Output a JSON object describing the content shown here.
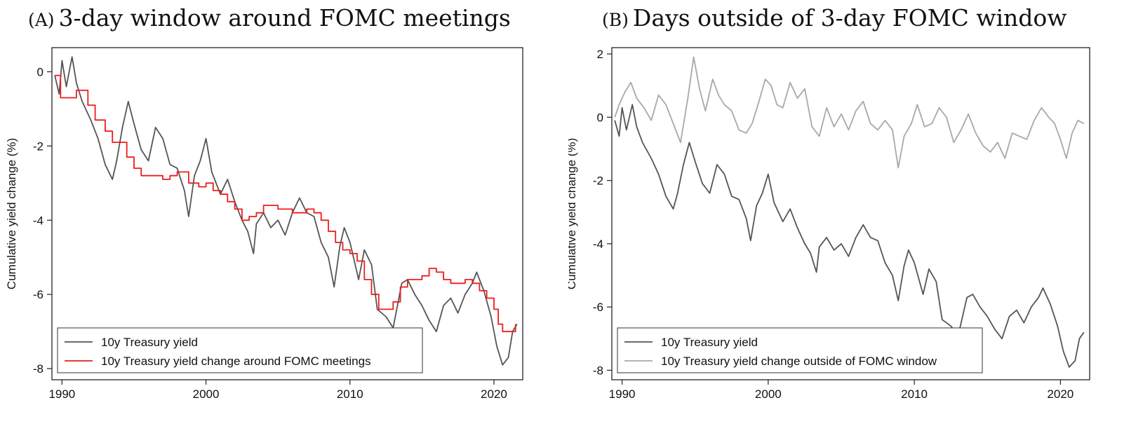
{
  "panels": {
    "a": {
      "tag": "(A)",
      "title": "3-day window around FOMC meetings"
    },
    "b": {
      "tag": "(B)",
      "title": "Days outside of 3-day FOMC window"
    }
  },
  "colors": {
    "yield": "#555555",
    "fomc": "#ee1c1c",
    "outside": "#a8a8a8"
  },
  "chart_data": [
    {
      "type": "line",
      "panel": "A",
      "title": "3-day window around FOMC meetings",
      "xlabel": "",
      "ylabel": "Cumulative yield change (%)",
      "xlim": [
        1989.3,
        2022.0
      ],
      "ylim": [
        -8.3,
        0.65
      ],
      "xticks": [
        1990,
        2000,
        2010,
        2020
      ],
      "yticks": [
        0,
        -2,
        -4,
        -6,
        -8
      ],
      "grid": false,
      "legend_position": "bottom-left",
      "series": [
        {
          "name": "10y Treasury yield",
          "color": "#555555",
          "x": [
            1989.5,
            1989.8,
            1990.0,
            1990.3,
            1990.7,
            1991.0,
            1991.4,
            1992.0,
            1992.5,
            1993.0,
            1993.5,
            1993.8,
            1994.2,
            1994.6,
            1995.0,
            1995.5,
            1996.0,
            1996.5,
            1997.0,
            1997.5,
            1998.0,
            1998.5,
            1998.8,
            1999.2,
            1999.6,
            2000.0,
            2000.4,
            2001.0,
            2001.5,
            2002.0,
            2002.5,
            2002.9,
            2003.3,
            2003.5,
            2004.0,
            2004.5,
            2005.0,
            2005.5,
            2006.0,
            2006.5,
            2007.0,
            2007.5,
            2008.0,
            2008.5,
            2008.9,
            2009.3,
            2009.6,
            2010.0,
            2010.6,
            2011.0,
            2011.5,
            2011.9,
            2012.5,
            2013.0,
            2013.6,
            2014.0,
            2014.5,
            2015.0,
            2015.5,
            2016.0,
            2016.5,
            2017.0,
            2017.5,
            2018.0,
            2018.5,
            2018.8,
            2019.3,
            2019.8,
            2020.2,
            2020.6,
            2021.0,
            2021.3,
            2021.6
          ],
          "y": [
            -0.1,
            -0.6,
            0.3,
            -0.4,
            0.4,
            -0.3,
            -0.8,
            -1.3,
            -1.8,
            -2.5,
            -2.9,
            -2.4,
            -1.5,
            -0.8,
            -1.4,
            -2.1,
            -2.4,
            -1.5,
            -1.8,
            -2.5,
            -2.6,
            -3.2,
            -3.9,
            -2.8,
            -2.4,
            -1.8,
            -2.7,
            -3.3,
            -2.9,
            -3.5,
            -4.0,
            -4.3,
            -4.9,
            -4.1,
            -3.8,
            -4.2,
            -4.0,
            -4.4,
            -3.8,
            -3.4,
            -3.8,
            -3.9,
            -4.6,
            -5.0,
            -5.8,
            -4.7,
            -4.2,
            -4.6,
            -5.6,
            -4.8,
            -5.2,
            -6.4,
            -6.6,
            -6.9,
            -5.7,
            -5.6,
            -6.0,
            -6.3,
            -6.7,
            -7.0,
            -6.3,
            -6.1,
            -6.5,
            -6.0,
            -5.7,
            -5.4,
            -5.9,
            -6.6,
            -7.4,
            -7.9,
            -7.7,
            -7.0,
            -6.8
          ]
        },
        {
          "name": "10y Treasury yield change around FOMC meetings",
          "color": "#ee1c1c",
          "step": true,
          "x": [
            1989.5,
            1989.9,
            1990.5,
            1991.0,
            1991.8,
            1992.3,
            1993.0,
            1993.5,
            1994.0,
            1994.5,
            1995.0,
            1995.5,
            1996.0,
            1997.0,
            1997.5,
            1998.0,
            1998.8,
            1999.5,
            2000.0,
            2000.5,
            2001.0,
            2001.5,
            2002.0,
            2002.5,
            2003.0,
            2003.5,
            2004.0,
            2005.0,
            2006.0,
            2007.0,
            2007.5,
            2008.0,
            2008.5,
            2009.0,
            2009.5,
            2010.0,
            2010.5,
            2011.0,
            2011.5,
            2012.0,
            2012.5,
            2013.0,
            2013.5,
            2014.0,
            2015.0,
            2015.5,
            2016.0,
            2016.5,
            2017.0,
            2018.0,
            2018.5,
            2019.0,
            2019.5,
            2020.0,
            2020.3,
            2020.6,
            2021.0,
            2021.5
          ],
          "y": [
            -0.1,
            -0.7,
            -0.7,
            -0.5,
            -0.9,
            -1.3,
            -1.6,
            -1.9,
            -1.9,
            -2.3,
            -2.6,
            -2.8,
            -2.8,
            -2.9,
            -2.8,
            -2.7,
            -3.0,
            -3.1,
            -3.0,
            -3.2,
            -3.3,
            -3.5,
            -3.7,
            -4.0,
            -3.9,
            -3.8,
            -3.6,
            -3.7,
            -3.8,
            -3.7,
            -3.8,
            -4.0,
            -4.3,
            -4.6,
            -4.8,
            -4.9,
            -5.1,
            -5.6,
            -6.0,
            -6.4,
            -6.4,
            -6.2,
            -5.8,
            -5.6,
            -5.5,
            -5.3,
            -5.4,
            -5.6,
            -5.7,
            -5.6,
            -5.7,
            -5.9,
            -6.1,
            -6.4,
            -6.8,
            -7.0,
            -7.0,
            -6.8
          ]
        }
      ]
    },
    {
      "type": "line",
      "panel": "B",
      "title": "Days outside of 3-day FOMC window",
      "xlabel": "",
      "ylabel": "Cumulative yield change (%)",
      "xlim": [
        1989.3,
        2022.0
      ],
      "ylim": [
        -8.3,
        2.2
      ],
      "xticks": [
        1990,
        2000,
        2010,
        2020
      ],
      "yticks": [
        2,
        0,
        -2,
        -4,
        -6,
        -8
      ],
      "grid": false,
      "legend_position": "bottom-left",
      "series": [
        {
          "name": "10y Treasury yield",
          "color": "#555555",
          "x": [
            1989.5,
            1989.8,
            1990.0,
            1990.3,
            1990.7,
            1991.0,
            1991.4,
            1992.0,
            1992.5,
            1993.0,
            1993.5,
            1993.8,
            1994.2,
            1994.6,
            1995.0,
            1995.5,
            1996.0,
            1996.5,
            1997.0,
            1997.5,
            1998.0,
            1998.5,
            1998.8,
            1999.2,
            1999.6,
            2000.0,
            2000.4,
            2001.0,
            2001.5,
            2002.0,
            2002.5,
            2002.9,
            2003.3,
            2003.5,
            2004.0,
            2004.5,
            2005.0,
            2005.5,
            2006.0,
            2006.5,
            2007.0,
            2007.5,
            2008.0,
            2008.5,
            2008.9,
            2009.3,
            2009.6,
            2010.0,
            2010.6,
            2011.0,
            2011.5,
            2011.9,
            2012.5,
            2013.0,
            2013.6,
            2014.0,
            2014.5,
            2015.0,
            2015.5,
            2016.0,
            2016.5,
            2017.0,
            2017.5,
            2018.0,
            2018.5,
            2018.8,
            2019.3,
            2019.8,
            2020.2,
            2020.6,
            2021.0,
            2021.3,
            2021.6
          ],
          "y": [
            -0.1,
            -0.6,
            0.3,
            -0.4,
            0.4,
            -0.3,
            -0.8,
            -1.3,
            -1.8,
            -2.5,
            -2.9,
            -2.4,
            -1.5,
            -0.8,
            -1.4,
            -2.1,
            -2.4,
            -1.5,
            -1.8,
            -2.5,
            -2.6,
            -3.2,
            -3.9,
            -2.8,
            -2.4,
            -1.8,
            -2.7,
            -3.3,
            -2.9,
            -3.5,
            -4.0,
            -4.3,
            -4.9,
            -4.1,
            -3.8,
            -4.2,
            -4.0,
            -4.4,
            -3.8,
            -3.4,
            -3.8,
            -3.9,
            -4.6,
            -5.0,
            -5.8,
            -4.7,
            -4.2,
            -4.6,
            -5.6,
            -4.8,
            -5.2,
            -6.4,
            -6.6,
            -6.9,
            -5.7,
            -5.6,
            -6.0,
            -6.3,
            -6.7,
            -7.0,
            -6.3,
            -6.1,
            -6.5,
            -6.0,
            -5.7,
            -5.4,
            -5.9,
            -6.6,
            -7.4,
            -7.9,
            -7.7,
            -7.0,
            -6.8
          ]
        },
        {
          "name": "10y Treasury yield change outside of FOMC window",
          "color": "#a8a8a8",
          "x": [
            1989.5,
            1989.8,
            1990.2,
            1990.6,
            1991.0,
            1991.5,
            1992.0,
            1992.5,
            1993.0,
            1993.5,
            1994.0,
            1994.5,
            1994.9,
            1995.3,
            1995.7,
            1996.2,
            1996.6,
            1997.0,
            1997.5,
            1998.0,
            1998.5,
            1998.9,
            1999.3,
            1999.8,
            2000.2,
            2000.6,
            2001.0,
            2001.5,
            2002.0,
            2002.5,
            2003.0,
            2003.5,
            2004.0,
            2004.5,
            2005.0,
            2005.5,
            2006.0,
            2006.5,
            2007.0,
            2007.5,
            2008.0,
            2008.5,
            2008.9,
            2009.3,
            2009.8,
            2010.2,
            2010.7,
            2011.2,
            2011.7,
            2012.2,
            2012.7,
            2013.2,
            2013.7,
            2014.2,
            2014.7,
            2015.2,
            2015.7,
            2016.2,
            2016.7,
            2017.2,
            2017.7,
            2018.2,
            2018.7,
            2019.2,
            2019.6,
            2020.0,
            2020.4,
            2020.8,
            2021.2,
            2021.6
          ],
          "y": [
            0.0,
            0.4,
            0.8,
            1.1,
            0.6,
            0.3,
            -0.1,
            0.7,
            0.4,
            -0.2,
            -0.8,
            0.6,
            1.9,
            0.9,
            0.2,
            1.2,
            0.7,
            0.4,
            0.2,
            -0.4,
            -0.5,
            -0.2,
            0.4,
            1.2,
            1.0,
            0.4,
            0.3,
            1.1,
            0.6,
            0.9,
            -0.3,
            -0.6,
            0.3,
            -0.3,
            0.1,
            -0.4,
            0.2,
            0.5,
            -0.2,
            -0.4,
            -0.1,
            -0.4,
            -1.6,
            -0.6,
            -0.2,
            0.4,
            -0.3,
            -0.2,
            0.3,
            0.0,
            -0.8,
            -0.4,
            0.1,
            -0.5,
            -0.9,
            -1.1,
            -0.8,
            -1.3,
            -0.5,
            -0.6,
            -0.7,
            -0.1,
            0.3,
            0.0,
            -0.2,
            -0.7,
            -1.3,
            -0.5,
            -0.1,
            -0.2
          ]
        }
      ]
    }
  ]
}
